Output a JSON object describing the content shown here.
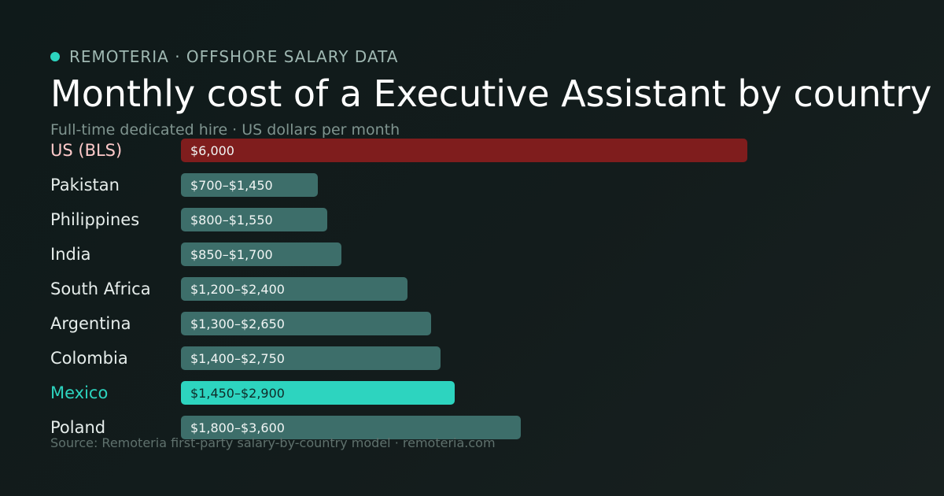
{
  "brand": {
    "name": "REMOTERIA · OFFSHORE SALARY DATA",
    "dot_color": "#2dd4bf"
  },
  "header": {
    "title": "Monthly cost of a Executive Assistant by country",
    "subtitle": "Full-time dedicated hire · US dollars per month"
  },
  "footer": {
    "source": "Source: Remoteria first-party salary-by-country model · remoteria.com"
  },
  "colors": {
    "baseline_bar": "#7f1d1d",
    "baseline_label": "#fecaca",
    "highlight_bar": "#2dd4bf",
    "highlight_label": "#2dd4bf",
    "default_bar": "#3d6e6a",
    "default_label": "#e6edeb",
    "value_text": "#f1f5f4",
    "highlight_value_text": "#0f2a27"
  },
  "chart_data": {
    "type": "bar",
    "orientation": "horizontal",
    "title": "Monthly cost of a Executive Assistant by country",
    "subtitle": "Full-time dedicated hire · US dollars per month",
    "unit": "US dollars per month",
    "xlim": [
      0,
      6000
    ],
    "grid": false,
    "legend": "none",
    "categories": [
      "US (BLS)",
      "Pakistan",
      "Philippines",
      "India",
      "South Africa",
      "Argentina",
      "Colombia",
      "Mexico",
      "Poland"
    ],
    "values_low": [
      6000,
      700,
      800,
      850,
      1200,
      1300,
      1400,
      1450,
      1800
    ],
    "values_high": [
      6000,
      1450,
      1550,
      1700,
      2400,
      2650,
      2750,
      2900,
      3600
    ],
    "value_labels": [
      "$6,000",
      "$700–$1,450",
      "$800–$1,550",
      "$850–$1,700",
      "$1,200–$2,400",
      "$1,300–$2,650",
      "$1,400–$2,750",
      "$1,450–$2,900",
      "$1,800–$3,600"
    ],
    "baseline_category": "US (BLS)",
    "highlight_category": "Mexico"
  }
}
